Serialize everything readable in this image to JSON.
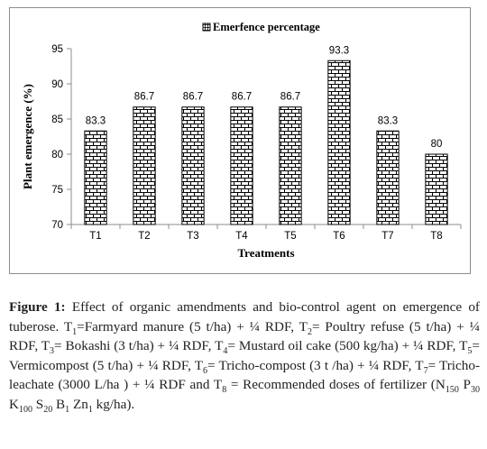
{
  "chart_data": {
    "type": "bar",
    "categories": [
      "T1",
      "T2",
      "T3",
      "T4",
      "T5",
      "T6",
      "T7",
      "T8"
    ],
    "series": [
      {
        "name": "Emerfence percentage",
        "values": [
          83.3,
          86.7,
          86.7,
          86.7,
          86.7,
          93.3,
          83.3,
          80
        ]
      }
    ],
    "data_labels": [
      "83.3",
      "86.7",
      "86.7",
      "86.7",
      "86.7",
      "93.3",
      "83.3",
      "80"
    ],
    "ylim": [
      70,
      95
    ],
    "yticks": [
      70,
      75,
      80,
      85,
      90,
      95
    ],
    "xlabel": "Treatments",
    "ylabel": "Plant emergence (%)",
    "legend_position": "top-center",
    "grid": false,
    "bar_pattern": "brick",
    "bar_color": "#000000"
  },
  "caption": {
    "label": "Figure 1:",
    "segments": [
      {
        "t": " Effect of organic amendments and bio-control agent on emergence of tuberose. T"
      },
      {
        "sub": "1"
      },
      {
        "t": "=Farmyard manure (5 t/ha) + ¼ RDF, T"
      },
      {
        "sub": "2"
      },
      {
        "t": "= Poultry refuse (5 t/ha) + ¼ RDF, T"
      },
      {
        "sub": "3"
      },
      {
        "t": "= Bokashi (3 t/ha) + ¼ RDF, T"
      },
      {
        "sub": "4"
      },
      {
        "t": "= Mustard oil cake (500 kg/ha) + ¼ RDF, T"
      },
      {
        "sub": "5"
      },
      {
        "t": "= Vermicompost (5 t/ha) + ¼ RDF, T"
      },
      {
        "sub": "6"
      },
      {
        "t": "= Tricho-compost (3 t /ha) + ¼ RDF, T"
      },
      {
        "sub": "7"
      },
      {
        "t": "= Tricho-leachate (3000 L/ha ) + ¼ RDF and T"
      },
      {
        "sub": "8"
      },
      {
        "t": " = Recommended doses of fertilizer (N"
      },
      {
        "sub": "150"
      },
      {
        "t": " P"
      },
      {
        "sub": "30"
      },
      {
        "t": " K"
      },
      {
        "sub": "100"
      },
      {
        "t": " S"
      },
      {
        "sub": "20"
      },
      {
        "t": " B"
      },
      {
        "sub": "1"
      },
      {
        "t": " Zn"
      },
      {
        "sub": "1"
      },
      {
        "t": " kg/ha)."
      }
    ]
  }
}
